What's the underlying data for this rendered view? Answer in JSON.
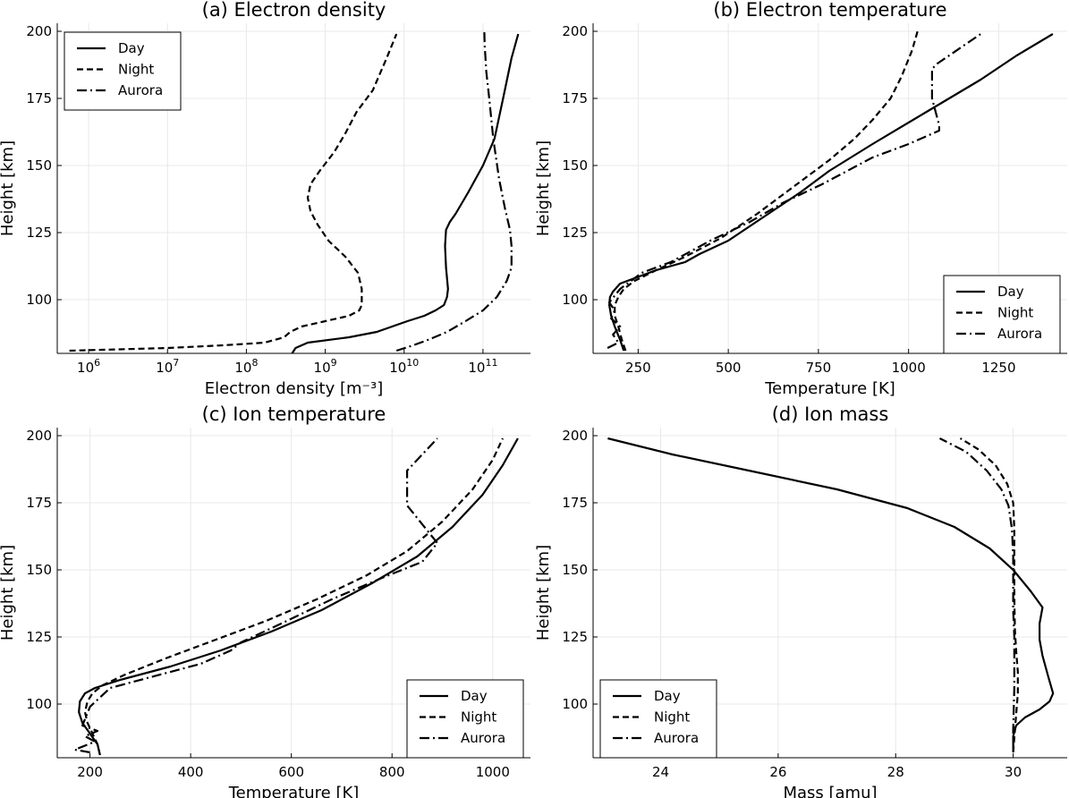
{
  "chart_data": [
    {
      "id": "a",
      "type": "line",
      "title": "(a) Electron density",
      "xlabel": "Electron density [m⁻³]",
      "ylabel": "Height [km]",
      "xscale": "log",
      "xlim": [
        400000,
        400000000000
      ],
      "ylim": [
        80,
        203
      ],
      "xticks": [
        1000000,
        10000000,
        100000000,
        1000000000,
        10000000000,
        100000000000
      ],
      "xtick_labels": [
        {
          "base": "10",
          "exp": "6"
        },
        {
          "base": "10",
          "exp": "7"
        },
        {
          "base": "10",
          "exp": "8"
        },
        {
          "base": "10",
          "exp": "9"
        },
        {
          "base": "10",
          "exp": "10"
        },
        {
          "base": "10",
          "exp": "11"
        }
      ],
      "yticks": [
        100,
        125,
        150,
        175,
        200
      ],
      "ytick_labels": [
        "100",
        "125",
        "150",
        "175",
        "200"
      ],
      "legend_position": "top-left",
      "series": [
        {
          "name": "Day",
          "style": "solid",
          "x": [
            380000000,
            420000000,
            600000000,
            2000000000,
            4500000000,
            11000000000,
            18000000000,
            25000000000,
            32000000000,
            35000000000,
            36000000000,
            35000000000,
            34000000000,
            33000000000,
            34000000000,
            38000000000,
            45000000000,
            65000000000,
            100000000000,
            140000000000,
            180000000000,
            230000000000,
            280000000000
          ],
          "y": [
            80,
            82,
            84,
            86,
            88,
            92,
            94,
            96,
            98,
            101,
            104,
            108,
            112,
            120,
            126,
            129,
            132,
            140,
            150,
            160,
            175,
            190,
            199
          ]
        },
        {
          "name": "Night",
          "style": "dashed",
          "x": [
            570000,
            1000000,
            10000000,
            50000000,
            170000000,
            300000000,
            360000000,
            500000000,
            1000000000,
            2000000000,
            2700000000,
            2900000000,
            2900000000,
            2600000000,
            1800000000,
            1100000000,
            800000000,
            650000000,
            600000000,
            650000000,
            850000000,
            1300000000,
            1800000000,
            2500000000,
            4000000000,
            6000000000,
            8000000000
          ],
          "y": [
            81,
            81.2,
            82,
            83,
            84,
            86,
            88,
            90,
            92,
            94,
            96,
            98,
            104,
            110,
            116,
            122,
            128,
            133,
            138,
            143,
            148,
            155,
            162,
            170,
            178,
            190,
            199
          ]
        },
        {
          "name": "Aurora",
          "style": "dashdot",
          "x": [
            8000000000,
            13000000000,
            20000000000,
            35000000000,
            60000000000,
            100000000000,
            150000000000,
            200000000000,
            230000000000,
            230000000000,
            220000000000,
            190000000000,
            160000000000,
            135000000000,
            120000000000,
            110000000000,
            105000000000,
            104000000000
          ],
          "y": [
            81,
            83,
            85,
            88,
            92,
            96,
            101,
            107,
            112,
            120,
            126,
            134,
            145,
            160,
            175,
            185,
            195,
            200
          ]
        }
      ]
    },
    {
      "id": "b",
      "type": "line",
      "title": "(b) Electron temperature",
      "xlabel": "Temperature [K]",
      "ylabel": "Height [km]",
      "xscale": "linear",
      "xlim": [
        125,
        1440
      ],
      "ylim": [
        80,
        203
      ],
      "xticks": [
        250,
        500,
        750,
        1000,
        1250
      ],
      "xtick_labels": [
        "250",
        "500",
        "750",
        "1000",
        "1250"
      ],
      "yticks": [
        100,
        125,
        150,
        175,
        200
      ],
      "ytick_labels": [
        "100",
        "125",
        "150",
        "175",
        "200"
      ],
      "legend_position": "bottom-right",
      "series": [
        {
          "name": "Day",
          "style": "solid",
          "x": [
            210,
            200,
            185,
            175,
            170,
            172,
            180,
            200,
            240,
            300,
            380,
            420,
            500,
            600,
            700,
            780,
            900,
            1050,
            1200,
            1300,
            1400
          ],
          "y": [
            81,
            85,
            90,
            94,
            98,
            101,
            103,
            106,
            108,
            111,
            114,
            117,
            122,
            131,
            140,
            148,
            158,
            170,
            182,
            191,
            199
          ]
        },
        {
          "name": "Night",
          "style": "dashed",
          "x": [
            215,
            205,
            195,
            185,
            185,
            195,
            210,
            240,
            300,
            380,
            480,
            580,
            680,
            780,
            850,
            900,
            950,
            980,
            1010,
            1025
          ],
          "y": [
            81,
            85,
            90,
            94,
            98,
            101,
            104,
            107,
            111,
            116,
            123,
            132,
            142,
            152,
            160,
            167,
            175,
            183,
            193,
            200
          ]
        },
        {
          "name": "Aurora",
          "style": "dashdot",
          "x": [
            165,
            195,
            180,
            200,
            175,
            185,
            170,
            200,
            260,
            340,
            450,
            560,
            650,
            760,
            900,
            1000,
            1085,
            1085,
            1065,
            1065,
            1080,
            1200
          ],
          "y": [
            82,
            84,
            87,
            90,
            93,
            96,
            99,
            104,
            110,
            114,
            122,
            129,
            136,
            143,
            153,
            158,
            163,
            165,
            175,
            186,
            188,
            199
          ]
        }
      ]
    },
    {
      "id": "c",
      "type": "line",
      "title": "(c) Ion temperature",
      "xlabel": "Temperature [K]",
      "ylabel": "Height [km]",
      "xscale": "linear",
      "xlim": [
        135,
        1075
      ],
      "ylim": [
        80,
        203
      ],
      "xticks": [
        200,
        400,
        600,
        800,
        1000
      ],
      "xtick_labels": [
        "200",
        "400",
        "600",
        "800",
        "1000"
      ],
      "yticks": [
        100,
        125,
        150,
        175,
        200
      ],
      "ytick_labels": [
        "100",
        "125",
        "150",
        "175",
        "200"
      ],
      "legend_position": "bottom-right",
      "series": [
        {
          "name": "Day",
          "style": "solid",
          "x": [
            220,
            215,
            200,
            185,
            178,
            180,
            190,
            210,
            260,
            360,
            460,
            560,
            660,
            760,
            850,
            920,
            980,
            1020,
            1050
          ],
          "y": [
            81,
            85,
            89,
            93,
            97,
            101,
            104,
            106,
            109,
            114,
            120,
            127,
            135,
            145,
            155,
            166,
            178,
            189,
            199
          ]
        },
        {
          "name": "Night",
          "style": "dashed",
          "x": [
            220,
            215,
            205,
            195,
            190,
            195,
            205,
            225,
            270,
            350,
            450,
            550,
            650,
            750,
            830,
            900,
            960,
            1000,
            1020
          ],
          "y": [
            81,
            85,
            89,
            93,
            97,
            101,
            104,
            107,
            111,
            117,
            124,
            131,
            139,
            148,
            157,
            168,
            180,
            191,
            199
          ]
        },
        {
          "name": "Aurora",
          "style": "dashdot",
          "x": [
            200,
            170,
            210,
            190,
            215,
            185,
            200,
            240,
            320,
            420,
            480,
            500,
            580,
            680,
            780,
            860,
            890,
            830,
            830,
            850,
            890
          ],
          "y": [
            82,
            83,
            86,
            88,
            90,
            92,
            99,
            106,
            110,
            115,
            120,
            123,
            130,
            139,
            147,
            153,
            160,
            174,
            187,
            191,
            199
          ]
        }
      ]
    },
    {
      "id": "d",
      "type": "line",
      "title": "(d) Ion mass",
      "xlabel": "Mass [amu]",
      "ylabel": "Height [km]",
      "xscale": "linear",
      "xlim": [
        22.85,
        30.92
      ],
      "ylim": [
        80,
        203
      ],
      "xticks": [
        24,
        26,
        28,
        30
      ],
      "xtick_labels": [
        "24",
        "26",
        "28",
        "30"
      ],
      "yticks": [
        100,
        125,
        150,
        175,
        200
      ],
      "ytick_labels": [
        "100",
        "125",
        "150",
        "175",
        "200"
      ],
      "legend_position": "bottom-left",
      "series": [
        {
          "name": "Day",
          "style": "solid",
          "x": [
            30,
            30,
            30.05,
            30.2,
            30.45,
            30.62,
            30.68,
            30.6,
            30.5,
            30.45,
            30.45,
            30.5,
            30.3,
            30.0,
            29.6,
            29.0,
            28.2,
            27.0,
            25.5,
            24.2,
            23.1
          ],
          "y": [
            82,
            88,
            92,
            95,
            98,
            101,
            104,
            110,
            118,
            124,
            130,
            136,
            142,
            150,
            158,
            166,
            173,
            180,
            187,
            193,
            199
          ]
        },
        {
          "name": "Night",
          "style": "dashed",
          "x": [
            30,
            30.03,
            30.05,
            30.08,
            30.08,
            30.05,
            30.03,
            30.02,
            30.02,
            30.02,
            30.0,
            29.9,
            29.7,
            29.4,
            29.1
          ],
          "y": [
            82,
            90,
            96,
            104,
            112,
            120,
            128,
            140,
            152,
            165,
            175,
            182,
            189,
            195,
            199
          ]
        },
        {
          "name": "Aurora",
          "style": "dashdot",
          "x": [
            30,
            30.0,
            30.01,
            30.02,
            30.02,
            30.02,
            30.0,
            30.0,
            30.0,
            29.98,
            29.92,
            29.8,
            29.55,
            29.2,
            28.75
          ],
          "y": [
            82,
            90,
            98,
            106,
            115,
            125,
            135,
            145,
            155,
            165,
            174,
            180,
            187,
            194,
            199
          ]
        }
      ]
    }
  ]
}
